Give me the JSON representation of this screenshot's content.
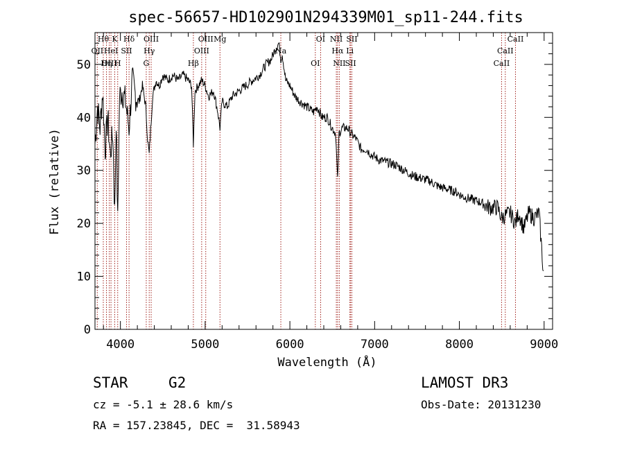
{
  "chart_data": {
    "type": "line",
    "title": "spec-56657-HD102901N294339M01_sp11-244.fits",
    "xlabel": "Wavelength (Å)",
    "ylabel": "Flux (relative)",
    "xlim": [
      3700,
      9100
    ],
    "ylim": [
      0,
      56
    ],
    "x_ticks": [
      4000,
      5000,
      6000,
      7000,
      8000,
      9000
    ],
    "x_tick_labels": [
      "4000",
      "5000",
      "6000",
      "7000",
      "8000",
      "9000"
    ],
    "y_ticks": [
      0,
      10,
      20,
      30,
      40,
      50
    ],
    "y_tick_labels": [
      "0",
      "10",
      "20",
      "30",
      "40",
      "50"
    ],
    "series": [
      {
        "name": "flux",
        "x": [
          3700,
          3730,
          3760,
          3790,
          3820,
          3850,
          3880,
          3910,
          3933,
          3950,
          3968,
          3990,
          4020,
          4060,
          4102,
          4140,
          4180,
          4220,
          4260,
          4300,
          4320,
          4340,
          4380,
          4420,
          4460,
          4500,
          4560,
          4620,
          4680,
          4740,
          4800,
          4840,
          4861,
          4880,
          4920,
          4960,
          5000,
          5040,
          5100,
          5150,
          5175,
          5200,
          5260,
          5320,
          5400,
          5480,
          5560,
          5640,
          5720,
          5780,
          5830,
          5870,
          5893,
          5910,
          5950,
          6000,
          6060,
          6120,
          6200,
          6280,
          6320,
          6380,
          6440,
          6500,
          6540,
          6563,
          6580,
          6620,
          6680,
          6720,
          6780,
          6840,
          6900,
          6960,
          7050,
          7150,
          7250,
          7350,
          7450,
          7550,
          7650,
          7750,
          7850,
          7950,
          8050,
          8150,
          8250,
          8350,
          8450,
          8498,
          8542,
          8600,
          8662,
          8700,
          8760,
          8820,
          8880,
          8940,
          8990
        ],
        "y": [
          35,
          42,
          38,
          45,
          34,
          40,
          33,
          37,
          22,
          40,
          20,
          44,
          45,
          43,
          38,
          47,
          44,
          43,
          46,
          42,
          36,
          33,
          44,
          47,
          46,
          48,
          47,
          48,
          47,
          48,
          47,
          46,
          35,
          45,
          46,
          47,
          46,
          44,
          45,
          41,
          38,
          43,
          42,
          44,
          45,
          46,
          47,
          48,
          50,
          51,
          53,
          54,
          51,
          52,
          47,
          46,
          44,
          43,
          42,
          41,
          42,
          40,
          40,
          38,
          37,
          28,
          37,
          38,
          38,
          37,
          36,
          34,
          34,
          33,
          32,
          31.5,
          31,
          30,
          29,
          28.5,
          28,
          27,
          26.5,
          26,
          25,
          24.5,
          24,
          23,
          23,
          21,
          21.5,
          22,
          20,
          22,
          19,
          22,
          21,
          22,
          11
        ]
      }
    ],
    "line_markers": [
      {
        "label": "Hθ",
        "x": 3798
      },
      {
        "label": "OII",
        "x": 3727
      },
      {
        "label": "OIII",
        "x": 3869
      },
      {
        "label": "K",
        "x": 3933
      },
      {
        "label": "HeI",
        "x": 3889
      },
      {
        "label": "Hη",
        "x": 3835
      },
      {
        "label": "Hδ",
        "x": 4102
      },
      {
        "label": "SII",
        "x": 4072
      },
      {
        "label": "H",
        "x": 3968
      },
      {
        "label": "OIII",
        "x": 4363
      },
      {
        "label": "Hγ",
        "x": 4340
      },
      {
        "label": "G",
        "x": 4305
      },
      {
        "label": "OIII",
        "x": 5007
      },
      {
        "label": "OIII",
        "x": 4959
      },
      {
        "label": "Hβ",
        "x": 4861
      },
      {
        "label": "Mg",
        "x": 5175
      },
      {
        "label": "Na",
        "x": 5893
      },
      {
        "label": "OI",
        "x": 6300
      },
      {
        "label": "OI",
        "x": 6363
      },
      {
        "label": "Hα",
        "x": 6563
      },
      {
        "label": "SII",
        "x": 6716
      },
      {
        "label": "NII",
        "x": 6548
      },
      {
        "label": "Li",
        "x": 6708
      },
      {
        "label": "NII",
        "x": 6583
      },
      {
        "label": "SII",
        "x": 6731
      },
      {
        "label": "CaII",
        "x": 8542
      },
      {
        "label": "CaII",
        "x": 8498
      },
      {
        "label": "CaII",
        "x": 8662
      }
    ]
  },
  "info": {
    "object_class": "STAR",
    "subclass": "G2",
    "survey": "LAMOST DR3",
    "redshift": "cz = -5.1 ± 28.6 km/s",
    "obs_date": "Obs-Date: 20131230",
    "coords": "RA = 157.23845, DEC =  31.58943"
  },
  "colors": {
    "line": "#000000",
    "marker": "#a0201a",
    "axis": "#000000"
  }
}
